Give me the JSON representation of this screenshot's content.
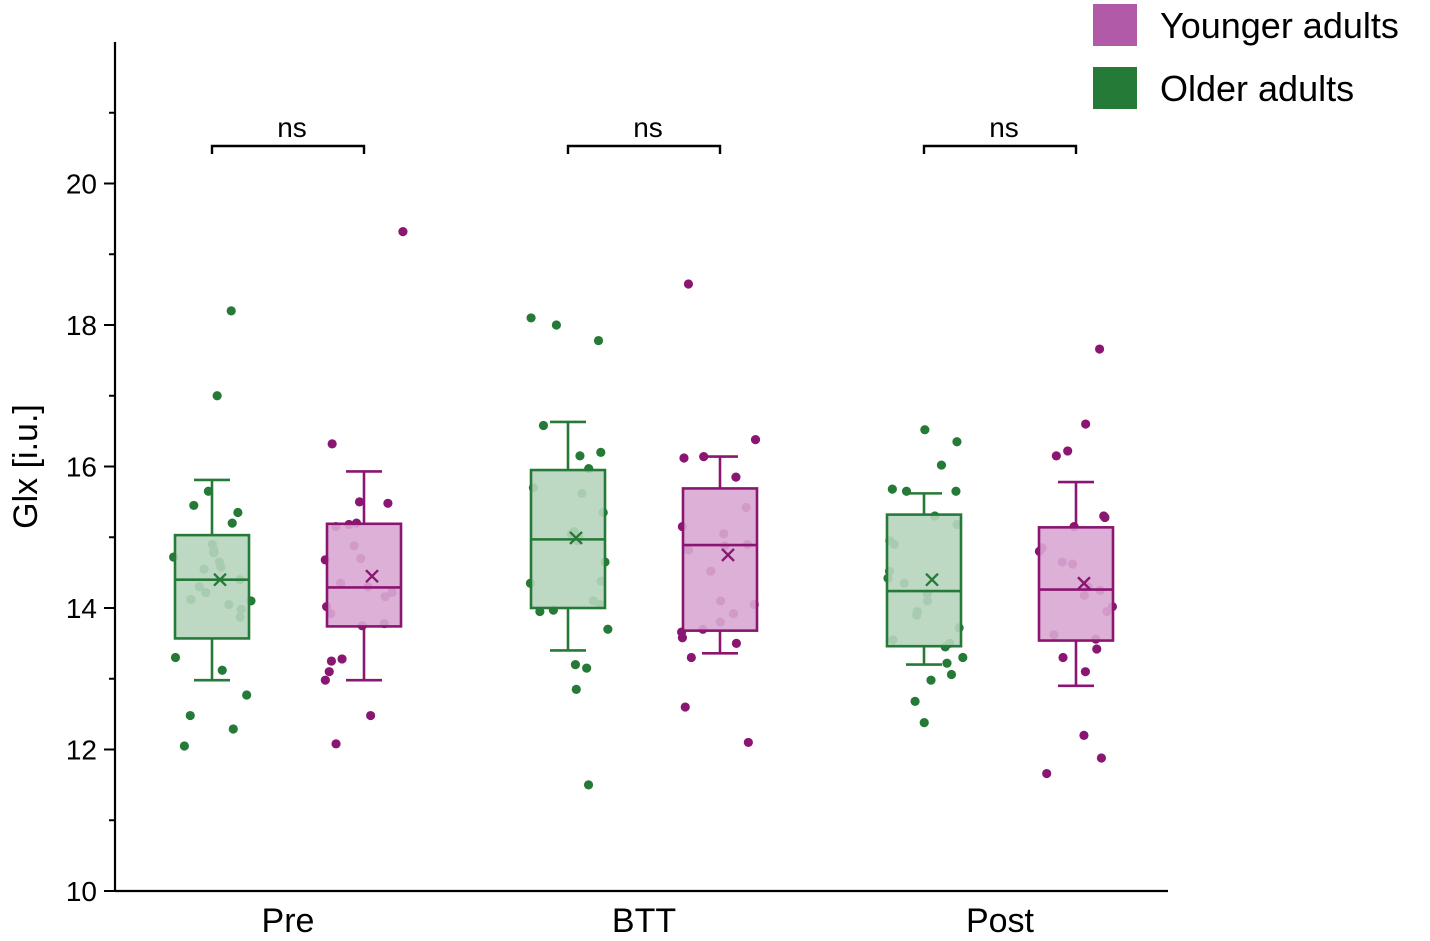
{
  "chart_data": {
    "type": "box",
    "ylabel": "Glx [i.u.]",
    "xlabel": "",
    "ylim": [
      10,
      22
    ],
    "yticks": [
      10,
      12,
      14,
      16,
      18,
      20
    ],
    "categories": [
      "Pre",
      "BTT",
      "Post"
    ],
    "legend_position": "top-right",
    "legend": [
      {
        "name": "Younger adults",
        "color": "#b05aa8"
      },
      {
        "name": "Older adults",
        "color": "#267a37"
      }
    ],
    "significance": [
      {
        "category": "Pre",
        "label": "ns"
      },
      {
        "category": "BTT",
        "label": "ns"
      },
      {
        "category": "Post",
        "label": "ns"
      }
    ],
    "series": [
      {
        "name": "Older adults",
        "edge_color": "#267a37",
        "fill_color": "#b6d5bd",
        "boxes": [
          {
            "category": "Pre",
            "whisker_low": 12.98,
            "q1": 13.57,
            "median": 14.4,
            "mean": 14.4,
            "q3": 15.03,
            "whisker_high": 15.81,
            "points": [
              18.2,
              17.0,
              15.65,
              15.45,
              15.35,
              15.2,
              14.9,
              14.82,
              14.78,
              14.72,
              14.65,
              14.58,
              14.55,
              14.4,
              14.3,
              14.22,
              14.12,
              14.1,
              14.05,
              13.98,
              13.87,
              13.3,
              13.12,
              12.77,
              12.48,
              12.29,
              12.05
            ]
          },
          {
            "category": "BTT",
            "whisker_low": 13.4,
            "q1": 14.0,
            "median": 14.97,
            "mean": 14.99,
            "q3": 15.95,
            "whisker_high": 16.63,
            "points": [
              18.1,
              18.0,
              17.78,
              16.58,
              16.2,
              16.15,
              15.97,
              15.7,
              15.62,
              15.35,
              15.08,
              15.05,
              15.0,
              14.95,
              14.65,
              14.38,
              14.35,
              14.1,
              14.05,
              13.97,
              13.95,
              13.7,
              13.2,
              13.15,
              12.85,
              11.5
            ]
          },
          {
            "category": "Post",
            "whisker_low": 13.2,
            "q1": 13.46,
            "median": 14.24,
            "mean": 14.4,
            "q3": 15.32,
            "whisker_high": 15.62,
            "points": [
              16.52,
              16.35,
              16.02,
              15.68,
              15.65,
              15.65,
              15.3,
              15.18,
              14.95,
              14.9,
              14.52,
              14.42,
              14.35,
              14.2,
              14.1,
              13.95,
              13.9,
              13.72,
              13.55,
              13.5,
              13.45,
              13.3,
              13.22,
              13.06,
              12.98,
              12.68,
              12.38
            ]
          }
        ]
      },
      {
        "name": "Younger adults",
        "edge_color": "#8a1672",
        "fill_color": "#d9a8d3",
        "boxes": [
          {
            "category": "Pre",
            "whisker_low": 12.98,
            "q1": 13.74,
            "median": 14.29,
            "mean": 14.45,
            "q3": 15.19,
            "whisker_high": 15.93,
            "points": [
              19.32,
              16.32,
              15.5,
              15.48,
              15.2,
              15.18,
              15.15,
              14.88,
              14.7,
              14.68,
              14.35,
              14.3,
              14.22,
              14.16,
              14.02,
              13.92,
              13.78,
              13.75,
              13.28,
              13.25,
              13.1,
              12.98,
              12.48,
              12.08
            ]
          },
          {
            "category": "BTT",
            "whisker_low": 13.36,
            "q1": 13.68,
            "median": 14.89,
            "mean": 14.75,
            "q3": 15.69,
            "whisker_high": 16.14,
            "points": [
              18.58,
              16.38,
              16.14,
              16.12,
              15.85,
              15.42,
              15.15,
              15.05,
              14.9,
              14.88,
              14.82,
              14.52,
              14.1,
              14.05,
              13.92,
              13.8,
              13.7,
              13.66,
              13.58,
              13.5,
              13.3,
              12.6,
              12.1
            ]
          },
          {
            "category": "Post",
            "whisker_low": 12.9,
            "q1": 13.54,
            "median": 14.26,
            "mean": 14.35,
            "q3": 15.14,
            "whisker_high": 15.78,
            "points": [
              17.66,
              16.6,
              16.22,
              16.15,
              15.3,
              15.28,
              15.15,
              14.85,
              14.8,
              14.65,
              14.62,
              14.3,
              14.25,
              14.18,
              14.02,
              13.95,
              13.62,
              13.56,
              13.42,
              13.3,
              13.1,
              12.2,
              11.88,
              11.66
            ]
          }
        ]
      }
    ]
  }
}
